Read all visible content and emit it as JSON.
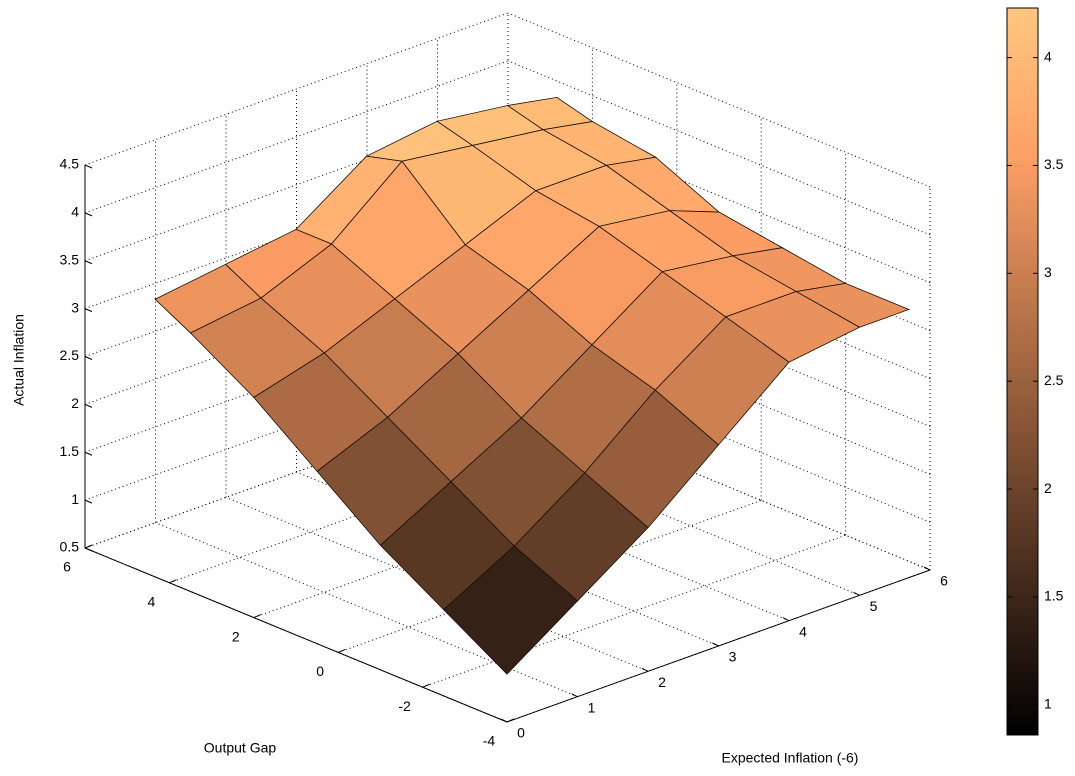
{
  "chart_data": {
    "type": "surface",
    "xlabel": "Expected Inflation (-6)",
    "ylabel": "Output Gap",
    "zlabel": "Actual Inflation",
    "x": [
      0,
      1,
      2,
      3,
      4,
      5,
      5.7
    ],
    "y": [
      -4,
      -2.5,
      -1,
      0.5,
      2,
      3.5,
      4.34
    ],
    "z": [
      [
        1.0,
        1.5,
        2.0,
        2.6,
        3.2,
        3.3,
        3.3
      ],
      [
        1.4,
        1.8,
        2.3,
        2.9,
        3.4,
        3.4,
        3.3
      ],
      [
        1.8,
        2.2,
        2.6,
        3.1,
        3.6,
        3.5,
        3.4
      ],
      [
        2.3,
        2.6,
        3.0,
        3.4,
        3.8,
        3.7,
        3.5
      ],
      [
        2.8,
        3.0,
        3.3,
        3.6,
        3.9,
        3.9,
        3.8
      ],
      [
        3.2,
        3.3,
        3.6,
        4.2,
        4.1,
        4.0,
        3.9
      ],
      [
        3.4,
        3.5,
        3.6,
        4.1,
        4.2,
        4.1,
        4.0
      ]
    ],
    "xlim": [
      0,
      6
    ],
    "ylim": [
      -4,
      6
    ],
    "zlim": [
      0.5,
      4.5
    ],
    "xticks": [
      0,
      1,
      2,
      3,
      4,
      5,
      6
    ],
    "yticks": [
      -4,
      -2,
      0,
      2,
      4,
      6
    ],
    "zticks": [
      0.5,
      1,
      1.5,
      2,
      2.5,
      3,
      3.5,
      4,
      4.5
    ],
    "colormap": "copper",
    "clim": [
      0.86,
      4.23
    ],
    "cticks": [
      1,
      1.5,
      2,
      2.5,
      3,
      3.5,
      4
    ],
    "grid": true
  }
}
